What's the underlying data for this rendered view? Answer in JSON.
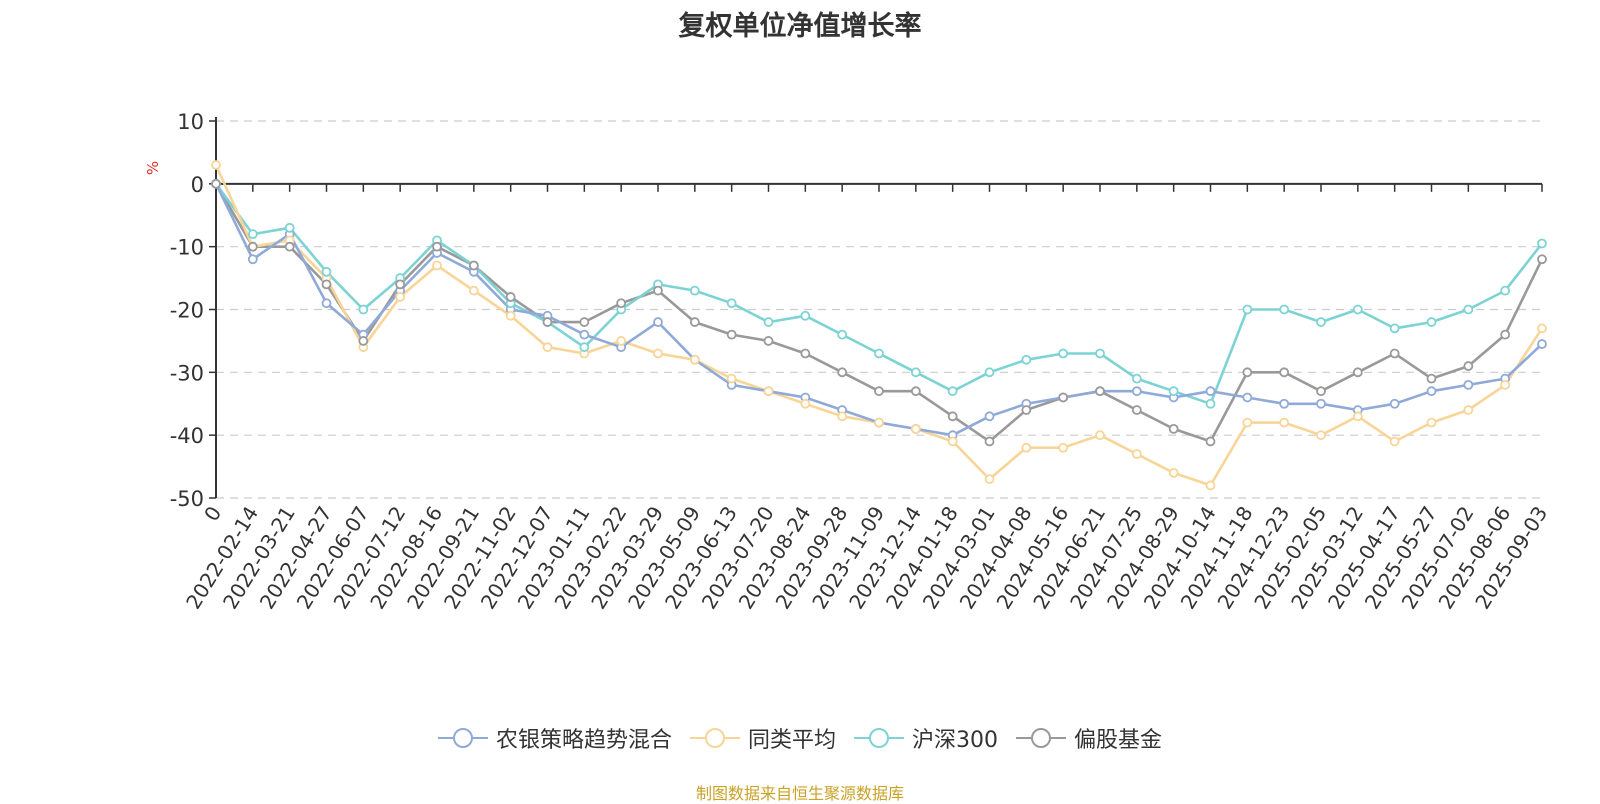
{
  "chart_data": {
    "type": "line",
    "title": "复权单位净值增长率",
    "ylabel": "%",
    "ylim": [
      -50,
      10
    ],
    "yticks": [
      10,
      0,
      -10,
      -20,
      -30,
      -40,
      -50
    ],
    "grid": true,
    "legend_position": "bottom",
    "x_tick_labels": [
      "0",
      "2022-02-14",
      "2022-03-21",
      "2022-04-27",
      "2022-06-07",
      "2022-07-12",
      "2022-08-16",
      "2022-09-21",
      "2022-11-02",
      "2022-12-07",
      "2023-01-11",
      "2023-02-22",
      "2023-03-29",
      "2023-05-09",
      "2023-06-13",
      "2023-07-20",
      "2023-08-24",
      "2023-09-28",
      "2023-11-09",
      "2023-12-14",
      "2024-01-18",
      "2024-03-01",
      "2024-04-08",
      "2024-05-16",
      "2024-06-21",
      "2024-07-25",
      "2024-08-29",
      "2024-10-14",
      "2024-11-18",
      "2024-12-23",
      "2025-02-05",
      "2025-03-12",
      "2025-04-17",
      "2025-05-27",
      "2025-07-02",
      "2025-08-06",
      "2025-09-03"
    ],
    "series": [
      {
        "name": "农银策略趋势混合",
        "color": "#8fa9d8",
        "values": [
          0,
          -12,
          -8,
          -19,
          -24,
          -17,
          -11,
          -14,
          -20,
          -21,
          -24,
          -26,
          -22,
          -28,
          -32,
          -33,
          -34,
          -36,
          -38,
          -39,
          -40,
          -37,
          -35,
          -34,
          -33,
          -33,
          -34,
          -33,
          -34,
          -35,
          -35,
          -36,
          -35,
          -33,
          -32,
          -31,
          -25.5
        ]
      },
      {
        "name": "同类平均",
        "color": "#f8d597",
        "values": [
          3,
          -10,
          -9,
          -15,
          -26,
          -18,
          -13,
          -17,
          -21,
          -26,
          -27,
          -25,
          -27,
          -28,
          -31,
          -33,
          -35,
          -37,
          -38,
          -39,
          -41,
          -47,
          -42,
          -42,
          -40,
          -43,
          -46,
          -48,
          -38,
          -38,
          -40,
          -37,
          -41,
          -38,
          -36,
          -32,
          -23
        ]
      },
      {
        "name": "沪深300",
        "color": "#7dd3d3",
        "values": [
          0,
          -8,
          -7,
          -14,
          -20,
          -15,
          -9,
          -13,
          -19,
          -22,
          -26,
          -20,
          -16,
          -17,
          -19,
          -22,
          -21,
          -24,
          -27,
          -30,
          -33,
          -30,
          -28,
          -27,
          -27,
          -31,
          -33,
          -35,
          -20,
          -20,
          -22,
          -20,
          -23,
          -22,
          -20,
          -17,
          -9.5
        ]
      },
      {
        "name": "偏股基金",
        "color": "#999999",
        "values": [
          0,
          -10,
          -10,
          -16,
          -25,
          -16,
          -10,
          -13,
          -18,
          -22,
          -22,
          -19,
          -17,
          -22,
          -24,
          -25,
          -27,
          -30,
          -33,
          -33,
          -37,
          -41,
          -36,
          -34,
          -33,
          -36,
          -39,
          -41,
          -30,
          -30,
          -33,
          -30,
          -27,
          -31,
          -29,
          -24,
          -12
        ]
      }
    ]
  },
  "source_text": "制图数据来自恒生聚源数据库"
}
